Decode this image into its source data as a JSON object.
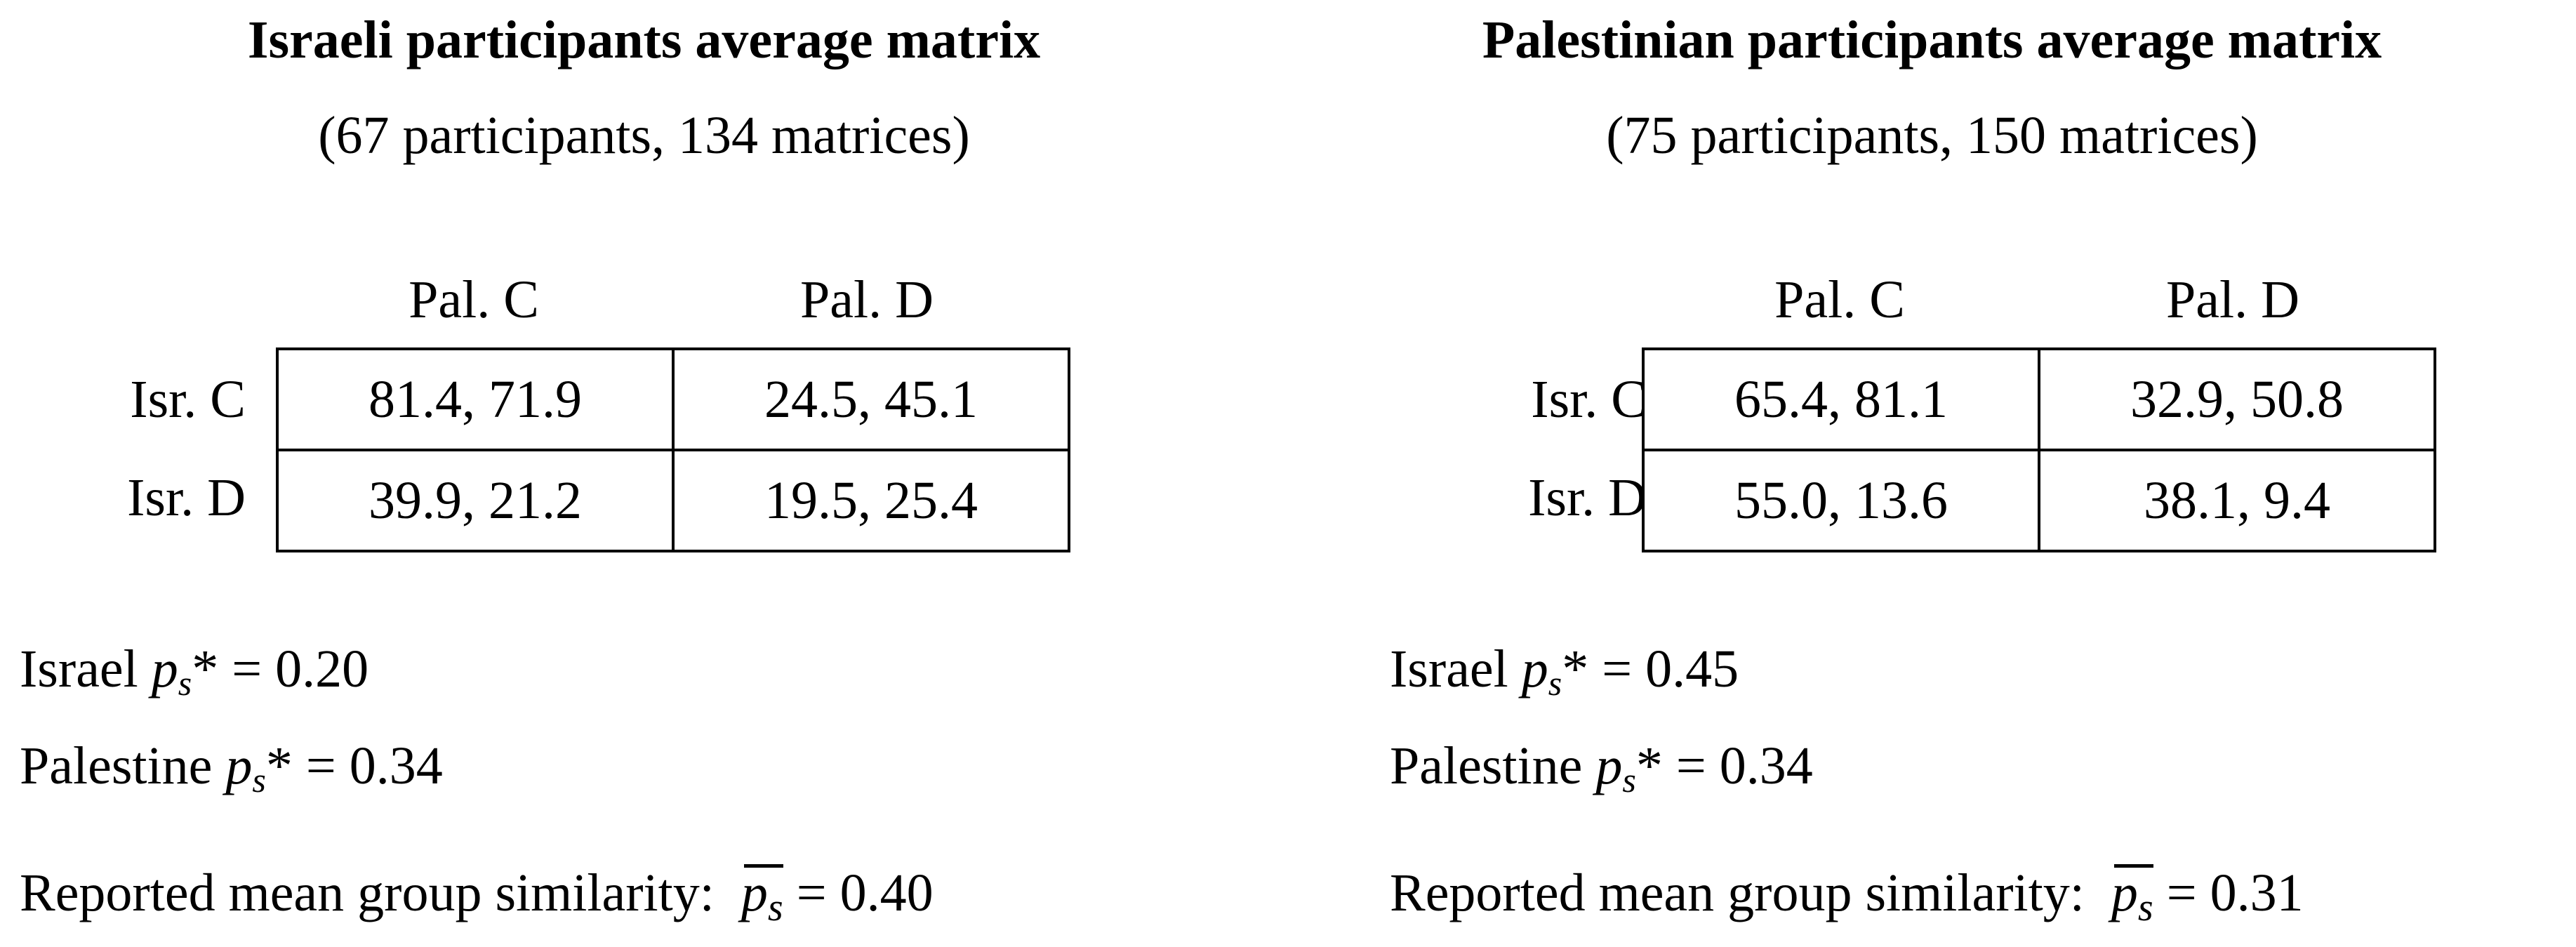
{
  "panels": [
    {
      "title": "Israeli participants average matrix",
      "subtitle": "(67 participants, 134 matrices)",
      "col_headers": [
        "Pal. C",
        "Pal. D"
      ],
      "row_headers": [
        "Isr. C",
        "Isr. D"
      ],
      "cells": [
        [
          "81.4, 71.9",
          "24.5, 45.1"
        ],
        [
          "39.9, 21.2",
          "19.5, 25.4"
        ]
      ],
      "israel_label": "Israel",
      "israel_value": "* = 0.20",
      "palestine_label": "Palestine",
      "palestine_value": "* = 0.34",
      "mean_label": "Reported mean group similarity:",
      "mean_value": "= 0.40"
    },
    {
      "title": "Palestinian participants average matrix",
      "subtitle": "(75 participants, 150 matrices)",
      "col_headers": [
        "Pal. C",
        "Pal. D"
      ],
      "row_headers": [
        "Isr. C",
        "Isr. D"
      ],
      "cells": [
        [
          "65.4, 81.1",
          "32.9, 50.8"
        ],
        [
          "55.0, 13.6",
          "38.1, 9.4"
        ]
      ],
      "israel_label": "Israel",
      "israel_value": "* = 0.45",
      "palestine_label": "Palestine",
      "palestine_value": "* = 0.34",
      "mean_label": "Reported mean group similarity:",
      "mean_value": "= 0.31"
    }
  ],
  "symbol": {
    "p": "p",
    "s": "s"
  }
}
